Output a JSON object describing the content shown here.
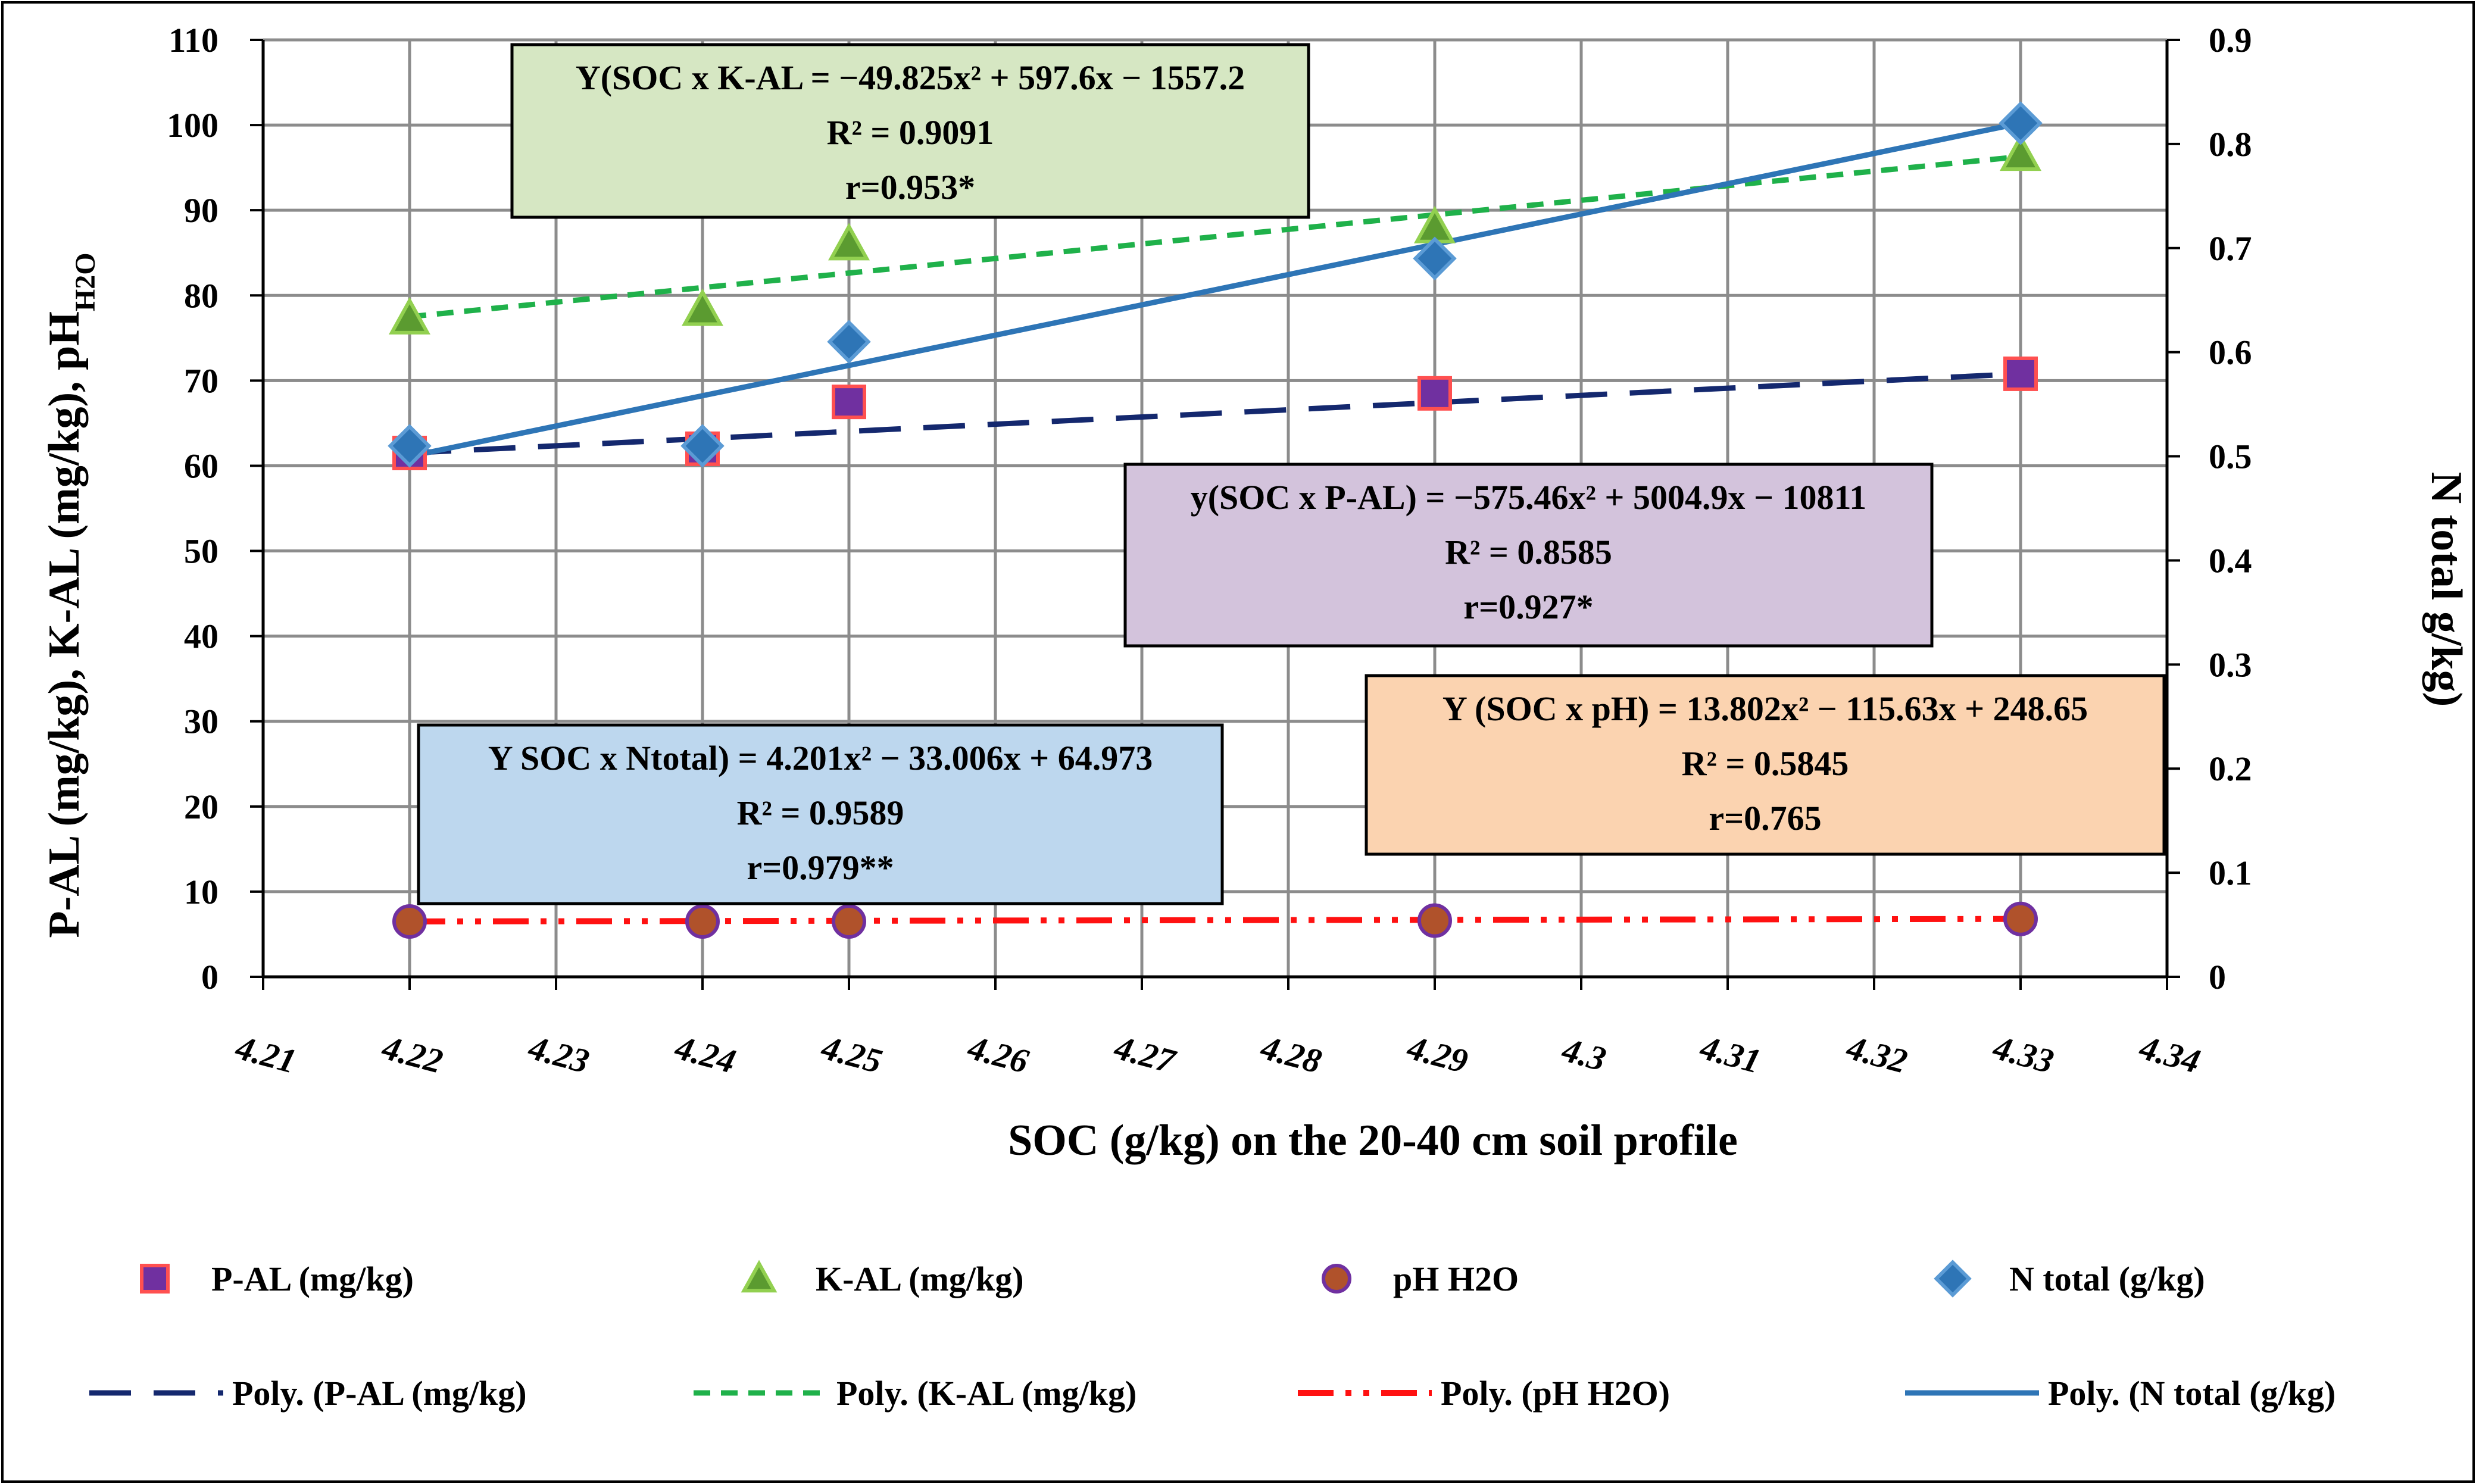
{
  "chart_data": {
    "type": "scatter",
    "title": "",
    "xlabel": "SOC (g/kg) on the 20-40 cm soil profile",
    "ylabel_left": "P-AL (mg/kg), K-AL (mg/kg), pH",
    "ylabel_left_sub": "H2O",
    "ylabel_right": "N total g/kg)",
    "xlim": [
      4.21,
      4.34
    ],
    "ylim_left": [
      0,
      110
    ],
    "ylim_right": [
      0,
      0.9
    ],
    "x_ticks": [
      "4.21",
      "4.22",
      "4.23",
      "4.24",
      "4.25",
      "4.26",
      "4.27",
      "4.28",
      "4.29",
      "4.3",
      "4.31",
      "4.32",
      "4.33",
      "4.34"
    ],
    "y_left_ticks": [
      "0",
      "10",
      "20",
      "30",
      "40",
      "50",
      "60",
      "70",
      "80",
      "90",
      "100",
      "110"
    ],
    "y_right_ticks": [
      "0",
      "0.1",
      "0.2",
      "0.3",
      "0.4",
      "0.5",
      "0.6",
      "0.7",
      "0.8",
      "0.9"
    ],
    "grid": true,
    "series": [
      {
        "name": "P-AL (mg/kg)",
        "axis": "left",
        "marker": "square",
        "fill": "#7030A0",
        "stroke": "#FF5050",
        "x": [
          4.22,
          4.24,
          4.25,
          4.29,
          4.33
        ],
        "y": [
          61.5,
          62.0,
          67.5,
          68.5,
          70.8
        ]
      },
      {
        "name": "K-AL (mg/kg)",
        "axis": "left",
        "marker": "triangle",
        "fill": "#5B9B30",
        "stroke": "#92D050",
        "x": [
          4.22,
          4.24,
          4.25,
          4.29,
          4.33
        ],
        "y": [
          77.3,
          78.3,
          86.0,
          88.0,
          96.5
        ]
      },
      {
        "name": "pH H2O",
        "axis": "left",
        "marker": "circle",
        "fill": "#B0522B",
        "stroke": "#7030A0",
        "x": [
          4.22,
          4.24,
          4.25,
          4.29,
          4.33
        ],
        "y": [
          6.5,
          6.5,
          6.5,
          6.6,
          6.8
        ]
      },
      {
        "name": "N total (g/kg)",
        "axis": "right",
        "marker": "diamond",
        "fill": "#2E75B6",
        "stroke": "#5B9BD5",
        "x": [
          4.22,
          4.24,
          4.25,
          4.29,
          4.33
        ],
        "y": [
          0.51,
          0.51,
          0.61,
          0.69,
          0.82
        ]
      }
    ],
    "trendlines": [
      {
        "name": "Poly. (P-AL (mg/kg)",
        "axis": "left",
        "color": "#14286E",
        "dash": "70,38",
        "width": 9,
        "x": [
          4.22,
          4.33
        ],
        "y": [
          61.5,
          70.8
        ]
      },
      {
        "name": "Poly. (K-AL (mg/kg)",
        "axis": "left",
        "color": "#1FB14A",
        "dash": "28,18",
        "width": 9,
        "x": [
          4.22,
          4.33
        ],
        "y": [
          77.5,
          96.3
        ]
      },
      {
        "name": "Poly. (pH H2O)",
        "axis": "left",
        "color": "#FF1111",
        "dash": "60,20,10,20,10,20",
        "width": 10,
        "x": [
          4.22,
          4.33
        ],
        "y": [
          6.5,
          6.8
        ]
      },
      {
        "name": "Poly. (N total (g/kg)",
        "axis": "right",
        "color": "#2E75B6",
        "dash": "",
        "width": 9,
        "x": [
          4.22,
          4.33
        ],
        "y": [
          0.5,
          0.82
        ]
      }
    ],
    "equations": [
      {
        "lines": [
          "Y(SOC x K-AL = −49.825x² + 597.6x − 1557.2",
          "R² = 0.9091",
          "r=0.953*"
        ],
        "bg": "#D6E7C3",
        "border": "#000000"
      },
      {
        "lines": [
          "y(SOC x P-AL) = −575.46x² + 5004.9x − 10811",
          "R² = 0.8585",
          "r=0.927*"
        ],
        "bg": "#D3C3DC",
        "border": "#000000"
      },
      {
        "lines": [
          "Y SOC x Ntotal) = 4.201x² − 33.006x + 64.973",
          "R² = 0.9589",
          "r=0.979**"
        ],
        "bg": "#BDD7EE",
        "border": "#000000"
      },
      {
        "lines": [
          "Y (SOC x pH) = 13.802x² − 115.63x + 248.65",
          "R² = 0.5845",
          "r=0.765"
        ],
        "bg": "#FBD3B0",
        "border": "#000000"
      }
    ],
    "legend": {
      "placement": "bottom",
      "markers": [
        "P-AL (mg/kg)",
        "K-AL (mg/kg)",
        "pH H2O",
        "N total (g/kg)"
      ],
      "lines": [
        "Poly. (P-AL (mg/kg)",
        "Poly. (K-AL (mg/kg)",
        "Poly. (pH H2O)",
        "Poly. (N total (g/kg)"
      ]
    }
  }
}
